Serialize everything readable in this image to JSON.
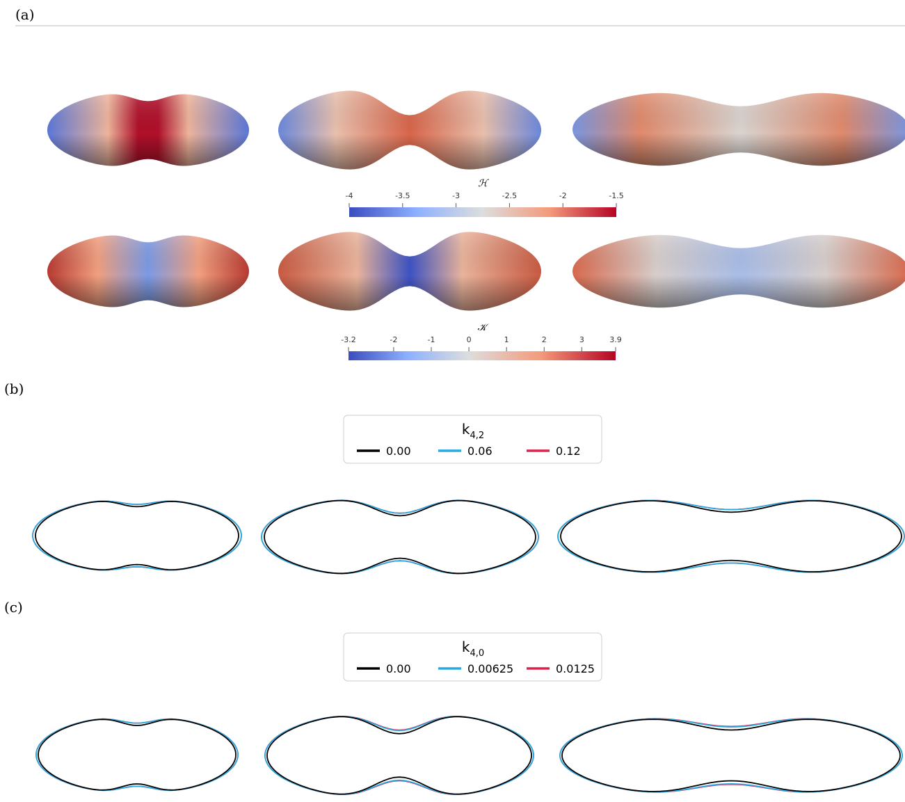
{
  "panels": [
    {
      "label": "(a)"
    },
    {
      "label": "(b)"
    },
    {
      "label": "(c)"
    }
  ],
  "colorbars": [
    {
      "title": "ℋ",
      "lim": [
        -4,
        -1.5
      ],
      "ticks": [
        -4,
        -3.5,
        -3,
        -2.5,
        -2,
        -1.5
      ]
    },
    {
      "title": "𝒦",
      "lim": [
        -3.2,
        3.9
      ],
      "ticks": [
        -3.2,
        -2,
        -1,
        0,
        1,
        2,
        3,
        3.9
      ]
    }
  ],
  "legends": [
    {
      "title": "k",
      "subscript": "4,2",
      "entries": [
        {
          "name": "0.00",
          "color": "#000000"
        },
        {
          "name": "0.06",
          "color": "#29abe2"
        },
        {
          "name": "0.12",
          "color": "#e0234e"
        }
      ]
    },
    {
      "title": "k",
      "subscript": "4,0",
      "entries": [
        {
          "name": "0.00",
          "color": "#000000"
        },
        {
          "name": "0.00625",
          "color": "#29abe2"
        },
        {
          "name": "0.0125",
          "color": "#e0234e"
        }
      ]
    }
  ]
}
